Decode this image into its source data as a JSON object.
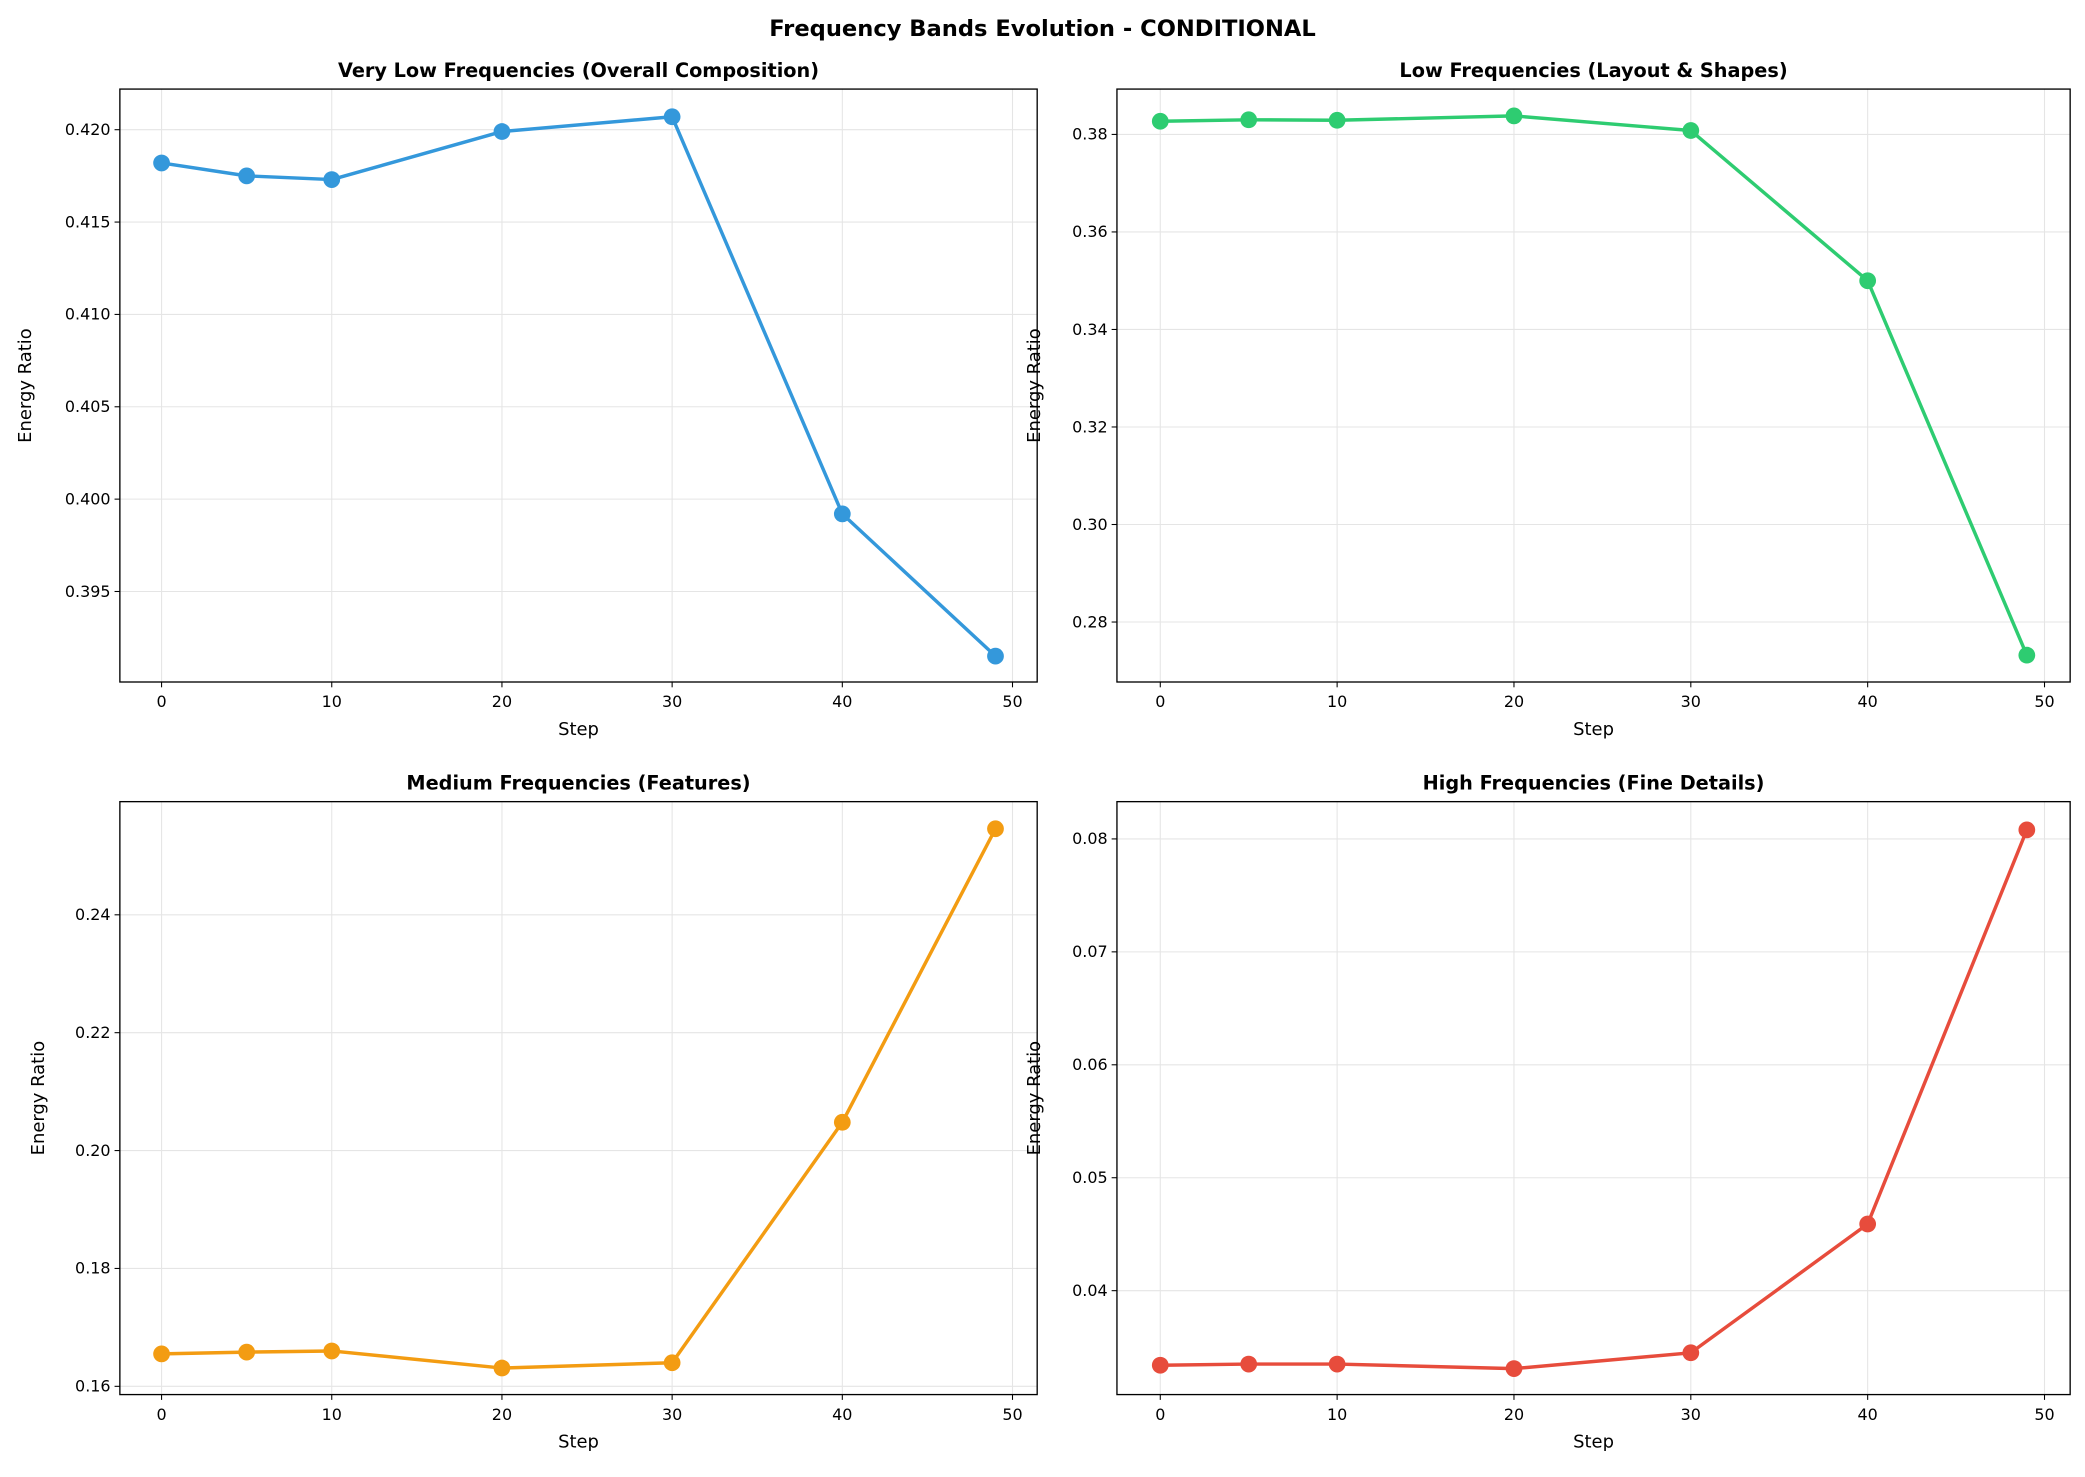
{
  "chart_data": {
    "title": "Frequency Bands Evolution - CONDITIONAL",
    "panels": [
      {
        "type": "line",
        "title": "Very Low Frequencies (Overall Composition)",
        "xlabel": "Step",
        "ylabel": "Energy Ratio",
        "x": [
          0,
          5,
          10,
          20,
          30,
          40,
          49
        ],
        "values": [
          0.4182,
          0.4175,
          0.4173,
          0.4199,
          0.4207,
          0.3992,
          0.3915
        ],
        "color": "#3498db",
        "xlim": [
          -2.45,
          51.45
        ],
        "ylim": [
          0.3901,
          0.4222
        ],
        "xticks": [
          0,
          10,
          20,
          30,
          40,
          50
        ],
        "xtick_labels": [
          "0",
          "10",
          "20",
          "30",
          "40",
          "50"
        ],
        "yticks": [
          0.395,
          0.4,
          0.405,
          0.41,
          0.415,
          0.42
        ],
        "ytick_labels": [
          "0.395",
          "0.400",
          "0.405",
          "0.410",
          "0.415",
          "0.420"
        ],
        "grid": true
      },
      {
        "type": "line",
        "title": "Low Frequencies (Layout & Shapes)",
        "xlabel": "Step",
        "ylabel": "Energy Ratio",
        "x": [
          0,
          5,
          10,
          20,
          30,
          40,
          49
        ],
        "values": [
          0.3827,
          0.383,
          0.3829,
          0.3838,
          0.3808,
          0.35,
          0.2732
        ],
        "color": "#2ecc71",
        "xlim": [
          -2.45,
          51.45
        ],
        "ylim": [
          0.2677,
          0.3893
        ],
        "xticks": [
          0,
          10,
          20,
          30,
          40,
          50
        ],
        "xtick_labels": [
          "0",
          "10",
          "20",
          "30",
          "40",
          "50"
        ],
        "yticks": [
          0.28,
          0.3,
          0.32,
          0.34,
          0.36,
          0.38
        ],
        "ytick_labels": [
          "0.28",
          "0.30",
          "0.32",
          "0.34",
          "0.36",
          "0.38"
        ],
        "grid": true
      },
      {
        "type": "line",
        "title": "Medium Frequencies (Features)",
        "xlabel": "Step",
        "ylabel": "Energy Ratio",
        "x": [
          0,
          5,
          10,
          20,
          30,
          40,
          49
        ],
        "values": [
          0.1655,
          0.1658,
          0.166,
          0.1631,
          0.164,
          0.2048,
          0.2546
        ],
        "color": "#f39c12",
        "xlim": [
          -2.45,
          51.45
        ],
        "ylim": [
          0.1586,
          0.2592
        ],
        "xticks": [
          0,
          10,
          20,
          30,
          40,
          50
        ],
        "xtick_labels": [
          "0",
          "10",
          "20",
          "30",
          "40",
          "50"
        ],
        "yticks": [
          0.16,
          0.18,
          0.2,
          0.22,
          0.24
        ],
        "ytick_labels": [
          "0.16",
          "0.18",
          "0.20",
          "0.22",
          "0.24"
        ],
        "grid": true
      },
      {
        "type": "line",
        "title": "High Frequencies (Fine Details)",
        "xlabel": "Step",
        "ylabel": "Energy Ratio",
        "x": [
          0,
          5,
          10,
          20,
          30,
          40,
          49
        ],
        "values": [
          0.0334,
          0.0335,
          0.0335,
          0.0331,
          0.0345,
          0.0459,
          0.0808
        ],
        "color": "#e74c3c",
        "xlim": [
          -2.45,
          51.45
        ],
        "ylim": [
          0.0308,
          0.0833
        ],
        "xticks": [
          0,
          10,
          20,
          30,
          40,
          50
        ],
        "xtick_labels": [
          "0",
          "10",
          "20",
          "30",
          "40",
          "50"
        ],
        "yticks": [
          0.04,
          0.05,
          0.06,
          0.07,
          0.08
        ],
        "ytick_labels": [
          "0.04",
          "0.05",
          "0.06",
          "0.07",
          "0.08"
        ],
        "grid": true
      }
    ]
  }
}
